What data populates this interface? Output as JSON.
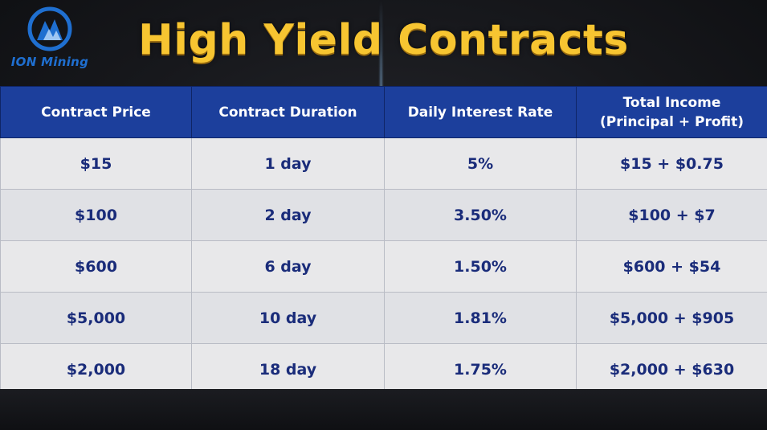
{
  "brand": {
    "logo_text": "ION Mining",
    "logo_color": "#1f6fd0"
  },
  "title": "High Yield Contracts",
  "colors": {
    "title": "#f7c531",
    "header_bg": "#1c3f9c",
    "cell_text": "#1a2c7a",
    "cell_bg": "#e8e8ea"
  },
  "table": {
    "headers": [
      "Contract Price",
      "Contract Duration",
      "Daily Interest Rate",
      "Total Income",
      "(Principal + Profit)"
    ],
    "rows": [
      [
        "$15",
        "1 day",
        "5%",
        "$15 + $0.75"
      ],
      [
        "$100",
        "2 day",
        "3.50%",
        "$100 + $7"
      ],
      [
        "$600",
        "6 day",
        "1.50%",
        "$600 + $54"
      ],
      [
        "$5,000",
        "10 day",
        "1.81%",
        "$5,000 + $905"
      ],
      [
        "$2,000",
        "18 day",
        "1.75%",
        "$2,000 + $630"
      ]
    ]
  }
}
